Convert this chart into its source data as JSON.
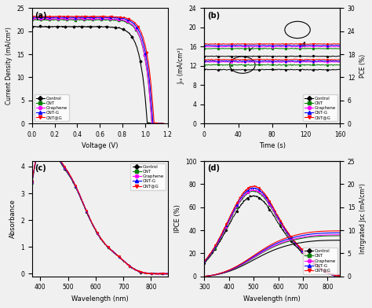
{
  "panel_labels": [
    "(a)",
    "(b)",
    "(c)",
    "(d)"
  ],
  "colors": {
    "Control": "black",
    "CNT": "green",
    "Graphene": "magenta",
    "CNT-G": "blue",
    "CNT@G": "red"
  },
  "markers": {
    "Control": "D",
    "CNT": "s",
    "Graphene": "o",
    "CNT-G": "^",
    "CNT@G": "v"
  },
  "panel_a": {
    "xlabel": "Voltage (V)",
    "ylabel": "Current Density (mA/cm²)",
    "xlim": [
      0.0,
      1.2
    ],
    "ylim": [
      0,
      25
    ],
    "yticks": [
      0,
      5,
      10,
      15,
      20,
      25
    ],
    "xticks": [
      0.0,
      0.2,
      0.4,
      0.6,
      0.8,
      1.0,
      1.2
    ],
    "jsc": {
      "Control": 21.0,
      "CNT": 22.5,
      "Graphene": 22.7,
      "CNT-G": 23.0,
      "CNT@G": 23.2
    },
    "voc": {
      "Control": 1.02,
      "CNT": 1.06,
      "Graphene": 1.06,
      "CNT-G": 1.07,
      "CNT@G": 1.08
    },
    "ff": {
      "Control": 0.6,
      "CNT": 0.67,
      "Graphene": 0.68,
      "CNT-G": 0.69,
      "CNT@G": 0.7
    }
  },
  "panel_b": {
    "xlabel": "Time (s)",
    "ylabel_left": "Jₛₓ (mA/cm²)",
    "ylabel_right": "PCE (%)",
    "xlim": [
      0,
      160
    ],
    "ylim_left": [
      0,
      24
    ],
    "ylim_right": [
      0,
      30
    ],
    "yticks_left": [
      0,
      4,
      8,
      12,
      16,
      20,
      24
    ],
    "yticks_right": [
      0,
      6,
      12,
      18,
      24,
      30
    ],
    "xticks": [
      0,
      40,
      80,
      120,
      160
    ],
    "jsc_vals": {
      "Control": 11.2,
      "CNT": 12.2,
      "Graphene": 12.8,
      "CNT-G": 13.0,
      "CNT@G": 13.3
    },
    "pce_vals": {
      "Control": 17.5,
      "CNT": 19.5,
      "Graphene": 20.0,
      "CNT-G": 20.3,
      "CNT@G": 20.7
    }
  },
  "panel_c": {
    "xlabel": "Wavelength (nm)",
    "ylabel": "Absorbance",
    "xlim": [
      370,
      860
    ],
    "ylim": [
      -0.1,
      4.2
    ],
    "yticks": [
      0,
      1,
      2,
      3,
      4
    ],
    "xticks": [
      400,
      500,
      600,
      700,
      800
    ]
  },
  "panel_d": {
    "xlabel": "Wavelength (nm)",
    "ylabel_left": "IPCE (%)",
    "ylabel_right": "Intrgrated Jsc (mA/cm²)",
    "xlim": [
      300,
      850
    ],
    "ylim_left": [
      0,
      100
    ],
    "ylim_right": [
      0,
      25
    ],
    "yticks_left": [
      0,
      20,
      40,
      60,
      80,
      100
    ],
    "xticks": [
      300,
      400,
      500,
      600,
      700,
      800
    ],
    "ipce_scales": {
      "Control": 0.82,
      "CNT": 0.87,
      "Graphene": 0.88,
      "CNT-G": 0.9,
      "CNT@G": 0.92
    }
  },
  "background": "#f0f0f0"
}
